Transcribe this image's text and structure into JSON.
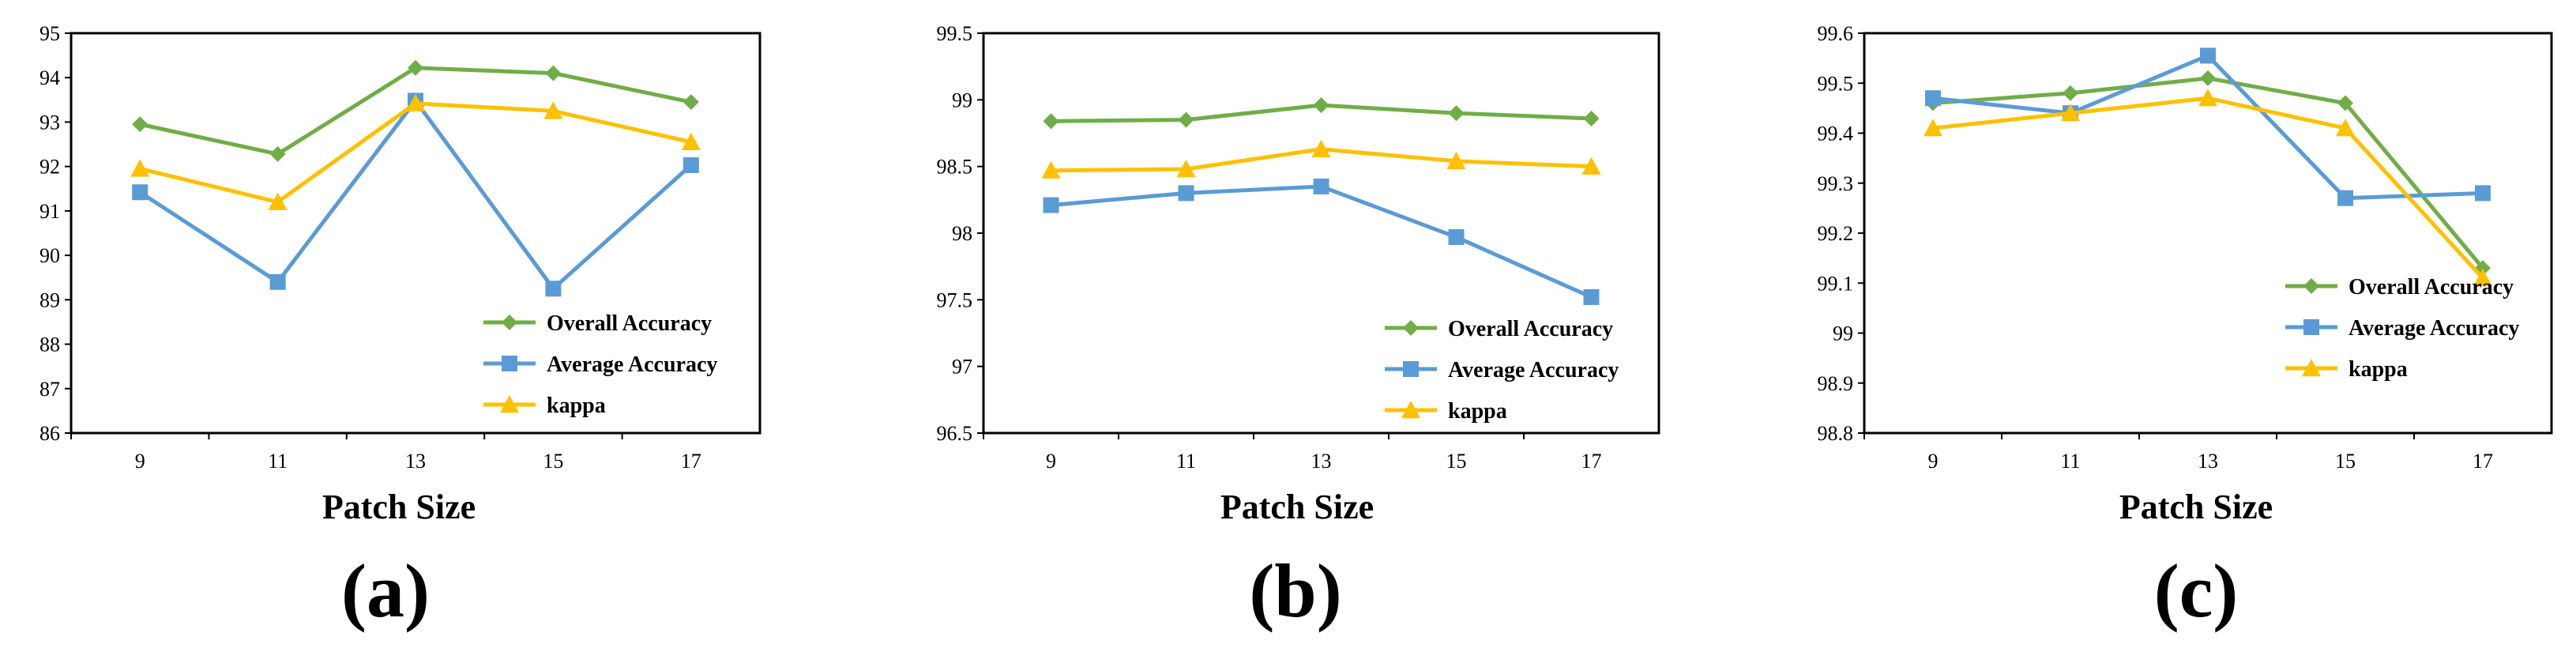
{
  "colors": {
    "overall": "#70AD47",
    "average": "#5B9BD5",
    "kappa": "#FFC000"
  },
  "chart_data": [
    {
      "type": "line",
      "panel_label": "(a)",
      "xlabel": "Patch Size",
      "ylabel": "",
      "categories": [
        "9",
        "11",
        "13",
        "15",
        "17"
      ],
      "ylim": [
        86,
        95
      ],
      "yticks": [
        "86",
        "87",
        "88",
        "89",
        "90",
        "91",
        "92",
        "93",
        "94",
        "95"
      ],
      "legend_position": "bottom-right",
      "series": [
        {
          "name": "Overall Accuracy",
          "key": "overall",
          "marker": "diamond",
          "values": [
            92.95,
            92.28,
            94.22,
            94.1,
            93.45
          ]
        },
        {
          "name": "Average Accuracy",
          "key": "average",
          "marker": "square",
          "values": [
            91.42,
            89.4,
            93.48,
            89.25,
            92.03
          ]
        },
        {
          "name": "kappa",
          "key": "kappa",
          "marker": "triangle",
          "values": [
            91.95,
            91.2,
            93.42,
            93.25,
            92.55
          ]
        }
      ]
    },
    {
      "type": "line",
      "panel_label": "(b)",
      "xlabel": "Patch Size",
      "ylabel": "",
      "categories": [
        "9",
        "11",
        "13",
        "15",
        "17"
      ],
      "ylim": [
        96.5,
        99.5
      ],
      "yticks": [
        "96.5",
        "97",
        "97.5",
        "98",
        "98.5",
        "99",
        "99.5"
      ],
      "legend_position": "bottom-right",
      "series": [
        {
          "name": "Overall Accuracy",
          "key": "overall",
          "marker": "diamond",
          "values": [
            98.84,
            98.85,
            98.96,
            98.9,
            98.86
          ]
        },
        {
          "name": "Average Accuracy",
          "key": "average",
          "marker": "square",
          "values": [
            98.21,
            98.3,
            98.35,
            97.97,
            97.52
          ]
        },
        {
          "name": "kappa",
          "key": "kappa",
          "marker": "triangle",
          "values": [
            98.47,
            98.48,
            98.63,
            98.54,
            98.5
          ]
        }
      ]
    },
    {
      "type": "line",
      "panel_label": "(c)",
      "xlabel": "Patch Size",
      "ylabel": "",
      "categories": [
        "9",
        "11",
        "13",
        "15",
        "17"
      ],
      "ylim": [
        98.8,
        99.6
      ],
      "yticks": [
        "98.8",
        "98.9",
        "99",
        "99.1",
        "99.2",
        "99.3",
        "99.4",
        "99.5",
        "99.6"
      ],
      "legend_position": "bottom-right",
      "series": [
        {
          "name": "Overall Accuracy",
          "key": "overall",
          "marker": "diamond",
          "values": [
            99.46,
            99.48,
            99.51,
            99.46,
            99.13
          ]
        },
        {
          "name": "Average Accuracy",
          "key": "average",
          "marker": "square",
          "values": [
            99.47,
            99.44,
            99.555,
            99.27,
            99.28
          ]
        },
        {
          "name": "kappa",
          "key": "kappa",
          "marker": "triangle",
          "values": [
            99.41,
            99.44,
            99.47,
            99.41,
            99.11
          ]
        }
      ]
    }
  ]
}
